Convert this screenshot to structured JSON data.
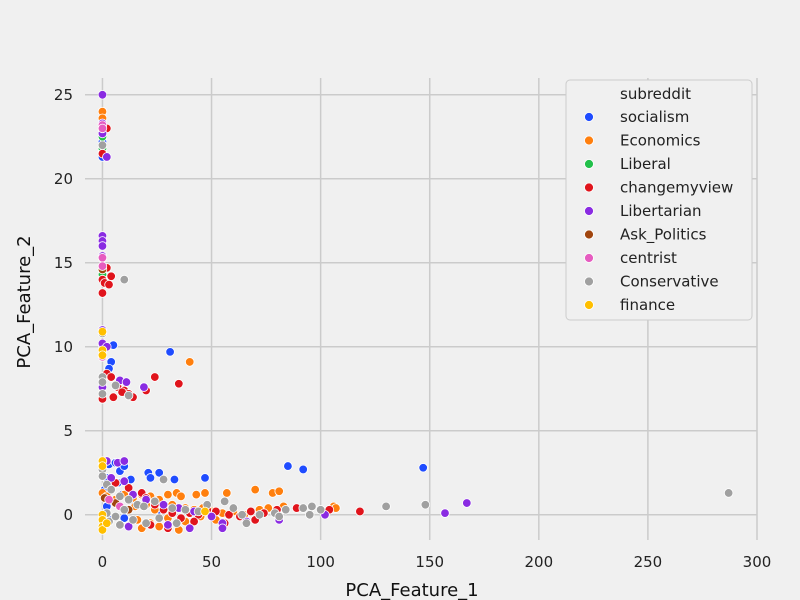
{
  "chart_data": {
    "type": "scatter",
    "xlabel": "PCA_Feature_1",
    "ylabel": "PCA_Feature_2",
    "xlim": [
      -8,
      300
    ],
    "ylim": [
      -1.5,
      26
    ],
    "xticks": [
      0,
      50,
      100,
      150,
      200,
      250,
      300
    ],
    "yticks": [
      0,
      5,
      10,
      15,
      20,
      25
    ],
    "grid": true,
    "legend_title": "subreddit",
    "legend_position": "top-right",
    "series": [
      {
        "name": "socialism",
        "color": "#1f4cff",
        "points": [
          [
            0,
            22.2
          ],
          [
            0,
            21.3
          ],
          [
            0,
            10.1
          ],
          [
            5,
            10.1
          ],
          [
            4,
            9.1
          ],
          [
            3,
            8.7
          ],
          [
            31,
            9.7
          ],
          [
            0,
            3.0
          ],
          [
            3,
            3.0
          ],
          [
            6,
            3.1
          ],
          [
            2,
            2.2
          ],
          [
            8,
            2.6
          ],
          [
            10,
            2.9
          ],
          [
            13,
            2.1
          ],
          [
            21,
            2.5
          ],
          [
            22,
            2.2
          ],
          [
            26,
            2.5
          ],
          [
            33,
            2.1
          ],
          [
            47,
            2.2
          ],
          [
            85,
            2.9
          ],
          [
            92,
            2.7
          ],
          [
            147,
            2.8
          ],
          [
            1,
            1.5
          ],
          [
            4,
            1.7
          ],
          [
            7,
            1.9
          ],
          [
            9,
            1.2
          ],
          [
            12,
            1.6
          ],
          [
            2,
            0.5
          ],
          [
            5,
            0.8
          ],
          [
            15,
            0.6
          ],
          [
            26,
            0.3
          ],
          [
            3,
            -0.3
          ],
          [
            10,
            -0.2
          ]
        ]
      },
      {
        "name": "Economics",
        "color": "#ff7f0e",
        "points": [
          [
            0,
            24.0
          ],
          [
            0,
            23.6
          ],
          [
            0,
            22.9
          ],
          [
            0,
            21.6
          ],
          [
            40,
            9.1
          ],
          [
            0,
            1.3
          ],
          [
            2,
            1.1
          ],
          [
            6,
            0.9
          ],
          [
            10,
            1.2
          ],
          [
            14,
            1.0
          ],
          [
            18,
            1.2
          ],
          [
            22,
            1.1
          ],
          [
            26,
            0.9
          ],
          [
            30,
            1.2
          ],
          [
            34,
            1.3
          ],
          [
            36,
            1.1
          ],
          [
            43,
            1.2
          ],
          [
            47,
            1.3
          ],
          [
            57,
            1.3
          ],
          [
            70,
            1.5
          ],
          [
            78,
            1.3
          ],
          [
            81,
            1.4
          ],
          [
            15,
            0.5
          ],
          [
            20,
            0.6
          ],
          [
            24,
            0.3
          ],
          [
            28,
            0.4
          ],
          [
            32,
            0.6
          ],
          [
            38,
            0.4
          ],
          [
            42,
            0.3
          ],
          [
            46,
            0.4
          ],
          [
            50,
            0.2
          ],
          [
            55,
            0.1
          ],
          [
            60,
            0.2
          ],
          [
            65,
            0.0
          ],
          [
            72,
            0.3
          ],
          [
            76,
            0.4
          ],
          [
            83,
            0.5
          ],
          [
            106,
            0.5
          ],
          [
            107,
            0.4
          ],
          [
            16,
            -0.3
          ],
          [
            22,
            -0.5
          ],
          [
            30,
            -0.2
          ],
          [
            38,
            -0.4
          ],
          [
            45,
            -0.1
          ],
          [
            52,
            -0.3
          ],
          [
            18,
            -0.8
          ],
          [
            26,
            -0.7
          ],
          [
            35,
            -0.9
          ]
        ]
      },
      {
        "name": "Liberal",
        "color": "#22c04a",
        "points": [
          [
            0,
            22.5
          ],
          [
            0,
            21.8
          ],
          [
            0,
            14.6
          ],
          [
            0,
            14.3
          ]
        ]
      },
      {
        "name": "changemyview",
        "color": "#e0141c",
        "points": [
          [
            0,
            21.5
          ],
          [
            2,
            23.0
          ],
          [
            0,
            14.8
          ],
          [
            2,
            14.7
          ],
          [
            4,
            14.2
          ],
          [
            0,
            14.0
          ],
          [
            1,
            13.8
          ],
          [
            3,
            13.7
          ],
          [
            0,
            13.2
          ],
          [
            24,
            8.2
          ],
          [
            20,
            7.4
          ],
          [
            35,
            7.8
          ],
          [
            2,
            8.4
          ],
          [
            4,
            8.2
          ],
          [
            7,
            7.6
          ],
          [
            10,
            7.4
          ],
          [
            12,
            7.2
          ],
          [
            5,
            7.0
          ],
          [
            9,
            7.3
          ],
          [
            0,
            6.9
          ],
          [
            14,
            7.0
          ],
          [
            6,
            1.9
          ],
          [
            12,
            1.6
          ],
          [
            18,
            1.3
          ],
          [
            20,
            1.0
          ],
          [
            24,
            0.6
          ],
          [
            28,
            0.3
          ],
          [
            32,
            0.1
          ],
          [
            36,
            -0.2
          ],
          [
            40,
            0.1
          ],
          [
            44,
            0.0
          ],
          [
            48,
            0.3
          ],
          [
            52,
            0.2
          ],
          [
            58,
            0.0
          ],
          [
            63,
            -0.1
          ],
          [
            68,
            0.2
          ],
          [
            74,
            0.1
          ],
          [
            80,
            0.3
          ],
          [
            89,
            0.4
          ],
          [
            104,
            0.3
          ],
          [
            118,
            0.2
          ],
          [
            22,
            -0.6
          ],
          [
            30,
            -0.8
          ],
          [
            42,
            -0.4
          ],
          [
            56,
            -0.5
          ],
          [
            70,
            -0.3
          ]
        ]
      },
      {
        "name": "Libertarian",
        "color": "#8a2be2",
        "points": [
          [
            0,
            25.0
          ],
          [
            0,
            23.3
          ],
          [
            0,
            22.7
          ],
          [
            2,
            21.3
          ],
          [
            0,
            16.6
          ],
          [
            0,
            16.3
          ],
          [
            0,
            16.0
          ],
          [
            0,
            15.4
          ],
          [
            0,
            11.0
          ],
          [
            0,
            10.2
          ],
          [
            2,
            10.0
          ],
          [
            8,
            8.0
          ],
          [
            11,
            7.9
          ],
          [
            19,
            7.6
          ],
          [
            0,
            7.6
          ],
          [
            2,
            3.2
          ],
          [
            7,
            3.1
          ],
          [
            10,
            3.2
          ],
          [
            4,
            2.2
          ],
          [
            10,
            2.0
          ],
          [
            14,
            1.2
          ],
          [
            20,
            0.9
          ],
          [
            28,
            0.6
          ],
          [
            35,
            0.4
          ],
          [
            42,
            0.2
          ],
          [
            50,
            -0.1
          ],
          [
            55,
            -0.5
          ],
          [
            55,
            -0.8
          ],
          [
            66,
            -0.4
          ],
          [
            81,
            -0.3
          ],
          [
            102,
            0.0
          ],
          [
            157,
            0.1
          ],
          [
            167,
            0.7
          ],
          [
            30,
            -0.6
          ],
          [
            40,
            -0.8
          ],
          [
            12,
            -0.7
          ]
        ]
      },
      {
        "name": "Ask_Politics",
        "color": "#a0450e",
        "points": [
          [
            0,
            14.6
          ],
          [
            1,
            1.0
          ],
          [
            6,
            0.7
          ],
          [
            12,
            0.3
          ]
        ]
      },
      {
        "name": "centrist",
        "color": "#e65cc0",
        "points": [
          [
            0,
            23.2
          ],
          [
            0,
            23.0
          ],
          [
            0,
            15.3
          ],
          [
            0,
            14.8
          ],
          [
            0,
            9.4
          ],
          [
            3,
            0.9
          ],
          [
            8,
            0.5
          ]
        ]
      },
      {
        "name": "Conservative",
        "color": "#a0a0a0",
        "points": [
          [
            0,
            22.0
          ],
          [
            10,
            14.0
          ],
          [
            0,
            10.8
          ],
          [
            0,
            8.2
          ],
          [
            0,
            7.9
          ],
          [
            0,
            7.2
          ],
          [
            6,
            7.7
          ],
          [
            12,
            7.1
          ],
          [
            0,
            2.7
          ],
          [
            0,
            2.3
          ],
          [
            2,
            1.8
          ],
          [
            4,
            1.5
          ],
          [
            8,
            1.1
          ],
          [
            12,
            0.9
          ],
          [
            16,
            0.6
          ],
          [
            19,
            0.5
          ],
          [
            24,
            0.8
          ],
          [
            28,
            2.1
          ],
          [
            32,
            0.4
          ],
          [
            38,
            0.3
          ],
          [
            44,
            0.2
          ],
          [
            48,
            0.6
          ],
          [
            56,
            0.8
          ],
          [
            60,
            0.4
          ],
          [
            64,
            0.0
          ],
          [
            66,
            -0.5
          ],
          [
            72,
            0.0
          ],
          [
            79,
            0.1
          ],
          [
            81,
            -0.1
          ],
          [
            84,
            0.3
          ],
          [
            92,
            0.4
          ],
          [
            95,
            0.0
          ],
          [
            96,
            0.5
          ],
          [
            100,
            0.3
          ],
          [
            130,
            0.5
          ],
          [
            148,
            0.6
          ],
          [
            287,
            1.3
          ],
          [
            3,
            -0.4
          ],
          [
            8,
            -0.6
          ],
          [
            14,
            -0.3
          ],
          [
            20,
            -0.5
          ],
          [
            26,
            -0.2
          ],
          [
            34,
            -0.5
          ],
          [
            2,
            0.1
          ],
          [
            6,
            -0.1
          ],
          [
            10,
            0.3
          ]
        ]
      },
      {
        "name": "finance",
        "color": "#ffbf00",
        "points": [
          [
            0,
            10.9
          ],
          [
            0,
            9.8
          ],
          [
            0,
            9.5
          ],
          [
            0,
            3.2
          ],
          [
            0,
            2.9
          ],
          [
            0,
            0.0
          ],
          [
            0,
            -0.3
          ],
          [
            0,
            -0.7
          ],
          [
            0,
            -0.9
          ],
          [
            2,
            -0.5
          ],
          [
            47,
            0.2
          ]
        ]
      }
    ]
  }
}
